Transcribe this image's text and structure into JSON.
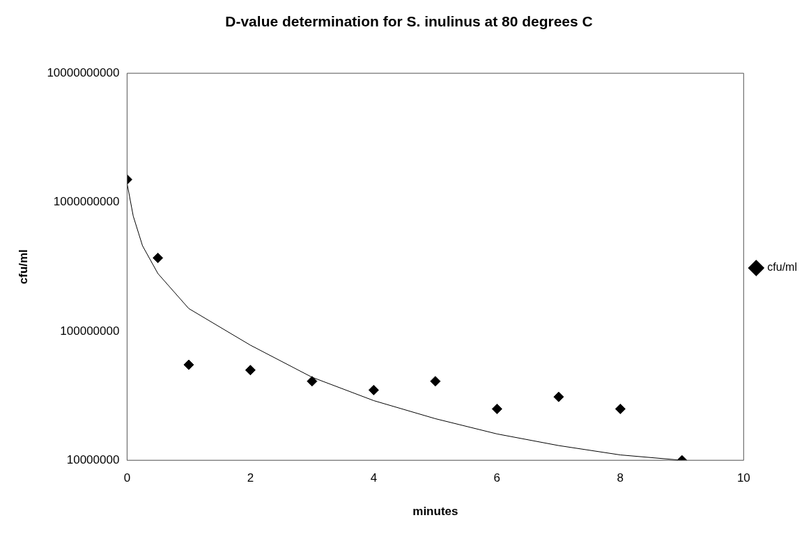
{
  "chart_data": {
    "type": "scatter",
    "title": "D-value determination for S. inulinus at 80 degrees C",
    "xlabel": "minutes",
    "ylabel": "cfu/ml",
    "series": [
      {
        "name": "cfu/ml",
        "type": "scatter",
        "color": "#000000",
        "marker": "diamond",
        "x": [
          0,
          0.5,
          1,
          2,
          3,
          4,
          5,
          6,
          7,
          8,
          9
        ],
        "values": [
          1500000000,
          370000000,
          55000000,
          50000000,
          41000000,
          35000000,
          41000000,
          25000000,
          31000000,
          25000000,
          10000000
        ]
      },
      {
        "type": "line",
        "color": "#000000",
        "marker": "none",
        "x": [
          0,
          0.1,
          0.25,
          0.5,
          1,
          2,
          3,
          4,
          5,
          6,
          7,
          8,
          9
        ],
        "values": [
          1400000000,
          780000000,
          460000000,
          280000000,
          150000000,
          78000000,
          44000000,
          29000000,
          21000000,
          16000000,
          13000000,
          11000000,
          10000000
        ]
      }
    ],
    "xlim": [
      0,
      10
    ],
    "xticks": [
      0,
      2,
      4,
      6,
      8,
      10
    ],
    "ylim": [
      10000000,
      10000000000
    ],
    "yticks": [
      10000000,
      100000000,
      1000000000,
      10000000000
    ],
    "log": "y",
    "grid": false,
    "legend": "right"
  }
}
